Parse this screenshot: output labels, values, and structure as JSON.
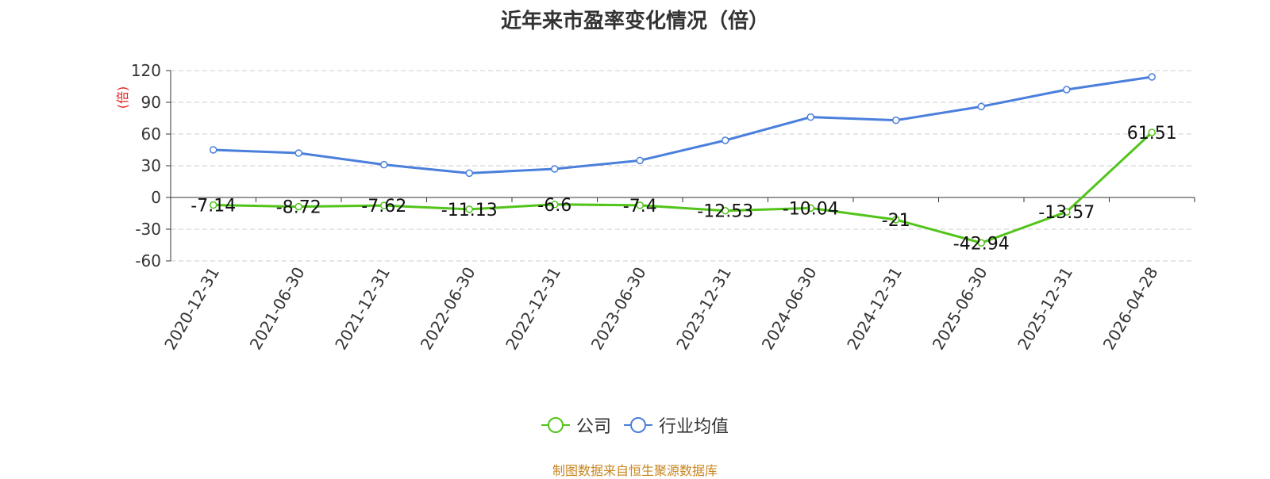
{
  "title": "近年来市盈率变化情况（倍）",
  "source": "制图数据来自恒生聚源数据库",
  "colors": {
    "company": "#52c41a",
    "industry": "#4a7fdc",
    "unit_label": "#e02020",
    "grid": "#cccccc",
    "axis": "#333333"
  },
  "chart_data": {
    "type": "line",
    "title": "近年来市盈率变化情况（倍）",
    "ylabel": "(倍)",
    "xlabel": "",
    "ylim": [
      -60,
      120
    ],
    "yticks": [
      -60,
      -30,
      0,
      30,
      60,
      90,
      120
    ],
    "ytick_labels": [
      "-60",
      "-30",
      "0",
      "30",
      "60",
      "90",
      "120"
    ],
    "categories": [
      "2020-12-31",
      "2021-06-30",
      "2021-12-31",
      "2022-06-30",
      "2022-12-31",
      "2023-06-30",
      "2023-12-31",
      "2024-06-30",
      "2024-12-31",
      "2025-06-30",
      "2025-12-31",
      "2026-04-28"
    ],
    "grid": true,
    "legend_position": "bottom-center",
    "series": [
      {
        "name": "公司",
        "values": [
          -7.14,
          -8.72,
          -7.62,
          -11.13,
          -6.6,
          -7.4,
          -12.53,
          -10.04,
          -21,
          -42.94,
          -13.57,
          61.51
        ],
        "labels": [
          "-7.14",
          "-8.72",
          "-7.62",
          "-11.13",
          "-6.6",
          "-7.4",
          "-12.53",
          "-10.04",
          "-21",
          "-42.94",
          "-13.57",
          "61.51"
        ]
      },
      {
        "name": "行业均值",
        "values": [
          45,
          42,
          31,
          23,
          27,
          35,
          54,
          76,
          73,
          86,
          102,
          114
        ]
      }
    ]
  }
}
